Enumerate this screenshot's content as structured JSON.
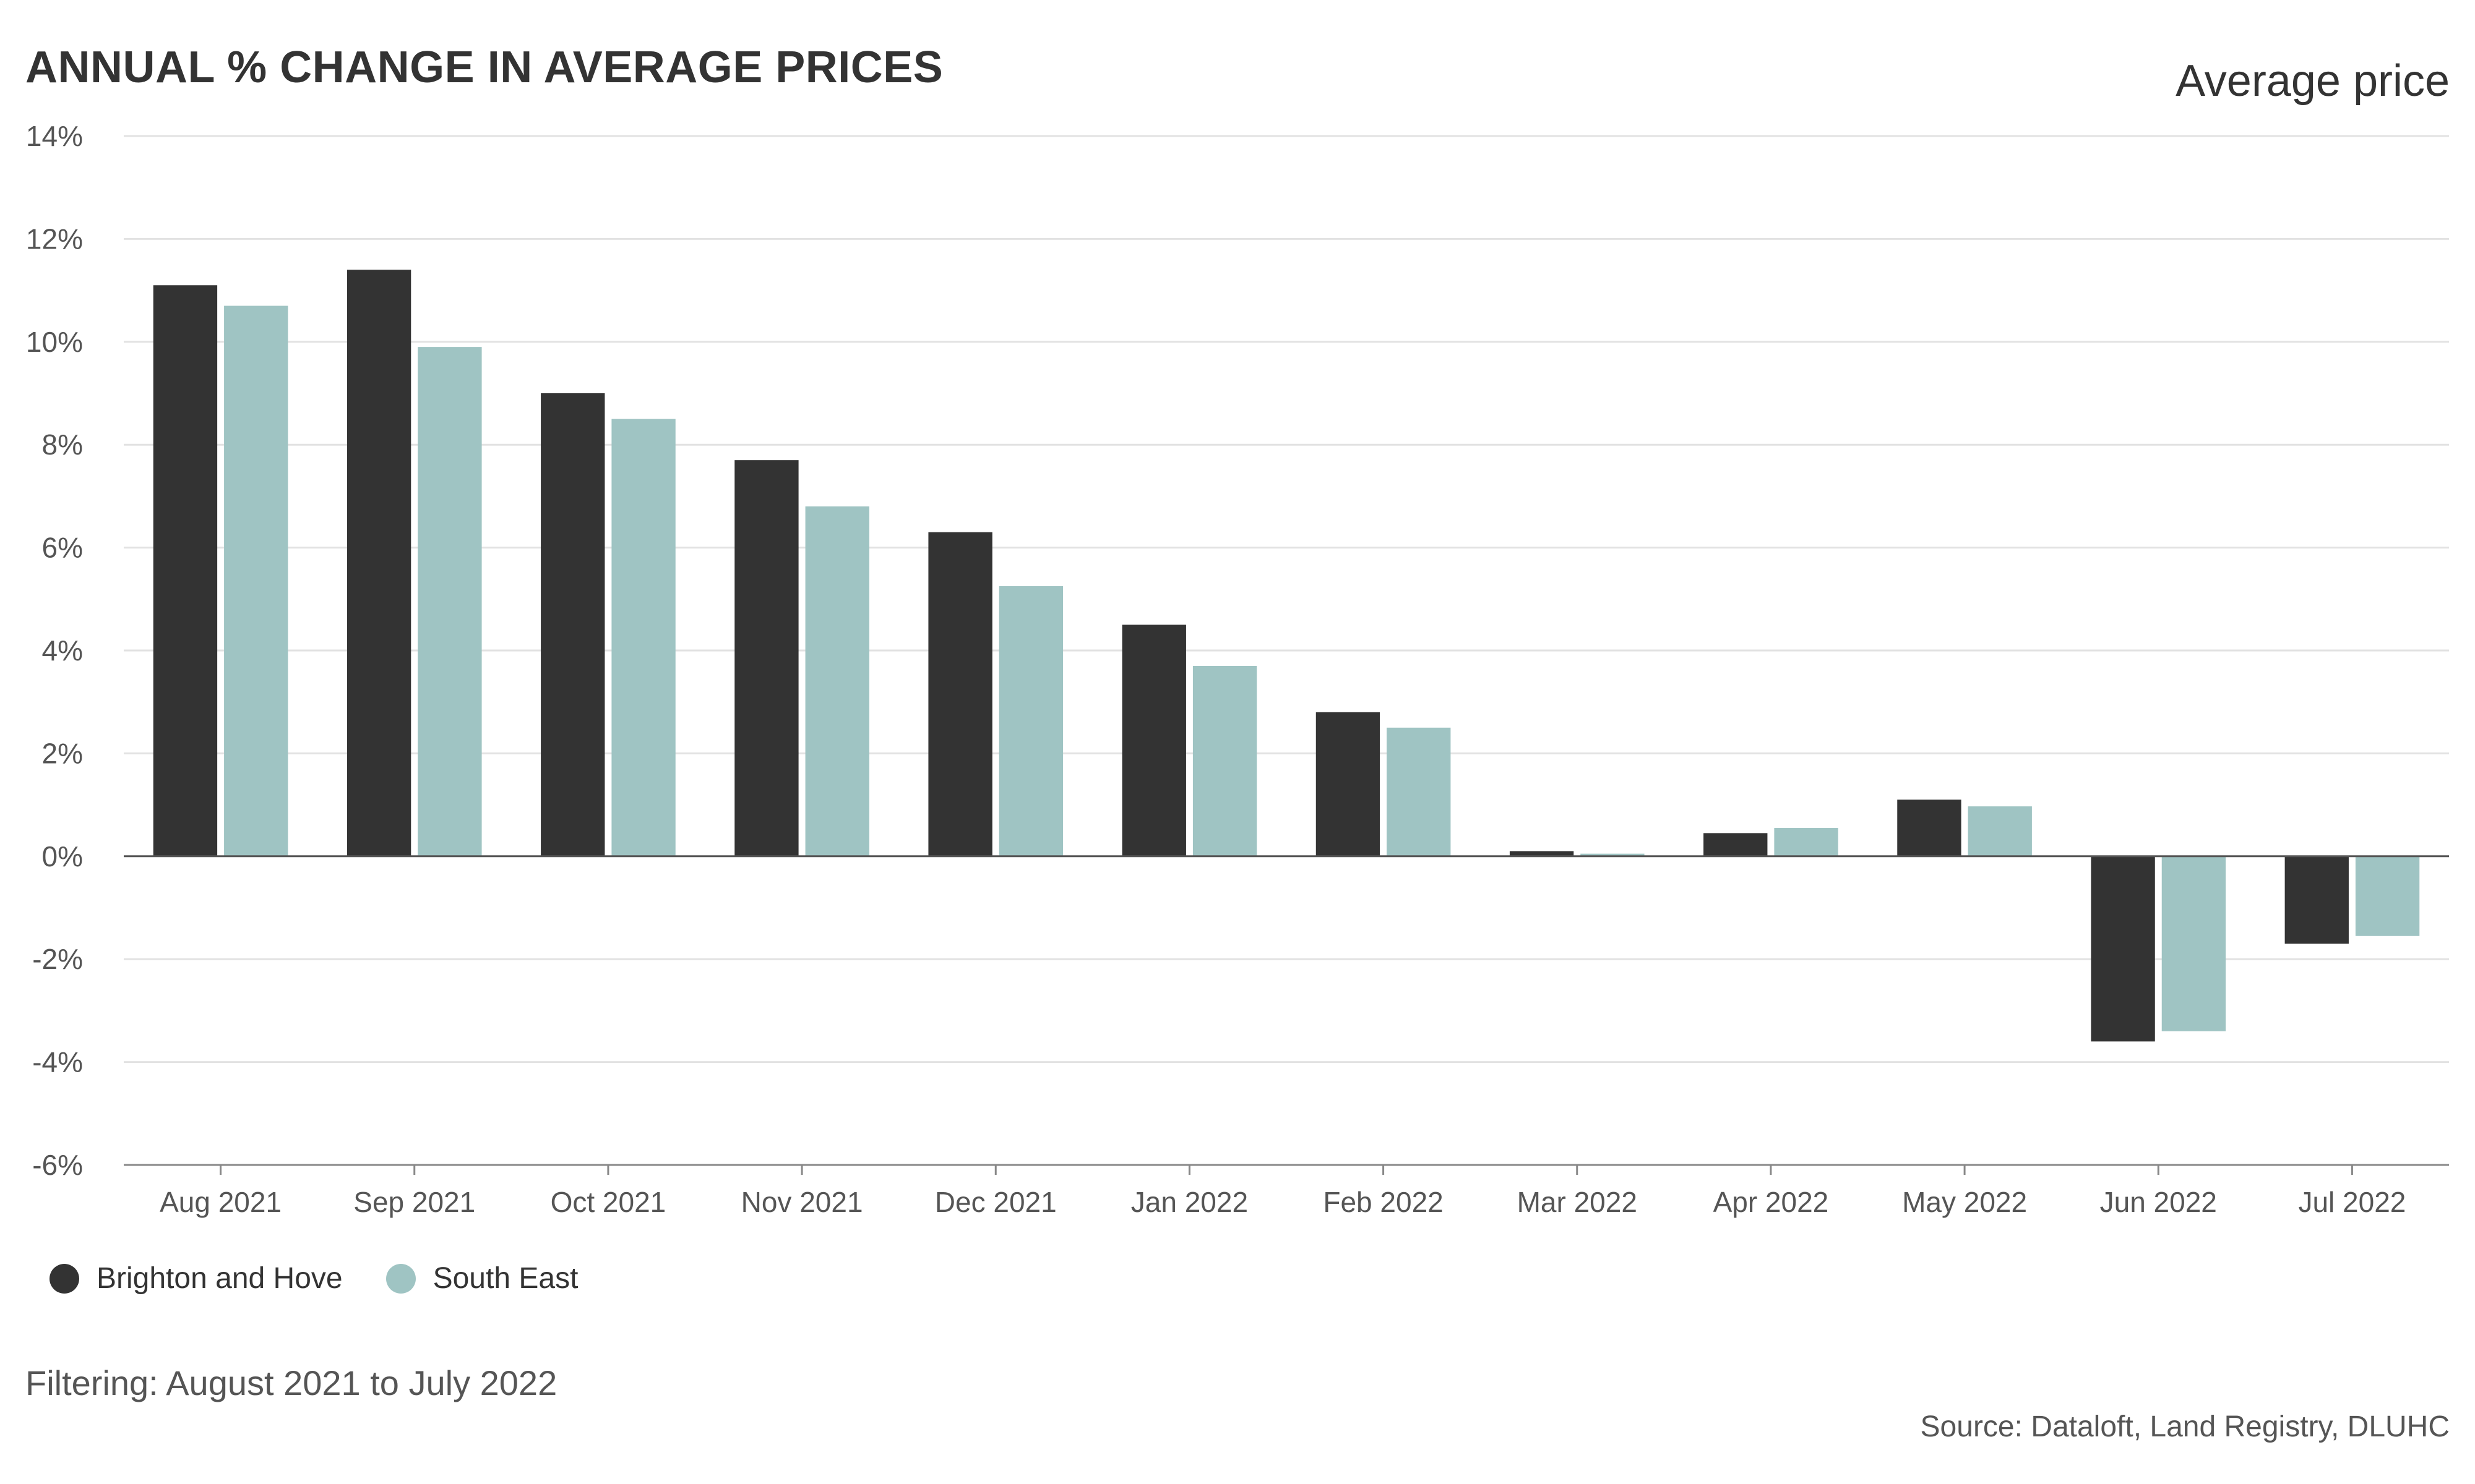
{
  "header": {
    "title": "ANNUAL % CHANGE IN AVERAGE PRICES",
    "metric": "Average price"
  },
  "footer": {
    "filter_note": "Filtering: August 2021 to July 2022",
    "source": "Source: Dataloft, Land Registry, DLUHC"
  },
  "colors": {
    "series_1": "#333333",
    "series_2": "#9fc4c3",
    "grid": "#e2e2e2",
    "zero_line": "#555555"
  },
  "chart_data": {
    "type": "bar",
    "title": "ANNUAL % CHANGE IN AVERAGE PRICES",
    "xlabel": "",
    "ylabel": "",
    "categories": [
      "Aug 2021",
      "Sep 2021",
      "Oct 2021",
      "Nov 2021",
      "Dec 2021",
      "Jan 2022",
      "Feb 2022",
      "Mar 2022",
      "Apr 2022",
      "May 2022",
      "Jun 2022",
      "Jul 2022"
    ],
    "series": [
      {
        "name": "Brighton and Hove",
        "color": "#333333",
        "values": [
          11.1,
          11.4,
          9.0,
          7.7,
          6.3,
          4.5,
          2.8,
          0.1,
          0.45,
          1.1,
          -3.6,
          -1.7
        ]
      },
      {
        "name": "South East",
        "color": "#9fc4c3",
        "values": [
          10.7,
          9.9,
          8.5,
          6.8,
          5.25,
          3.7,
          2.5,
          0.05,
          0.55,
          0.97,
          -3.4,
          -1.55
        ]
      }
    ],
    "ylim": [
      -6,
      14
    ],
    "y_ticks": [
      14,
      12,
      10,
      8,
      6,
      4,
      2,
      0,
      -2,
      -4,
      -6
    ],
    "y_tick_labels": [
      "14%",
      "12%",
      "10%",
      "8%",
      "6%",
      "4%",
      "2%",
      "0%",
      "-2%",
      "-4%",
      "-6%"
    ],
    "grid": true,
    "legend_position": "bottom-left"
  }
}
